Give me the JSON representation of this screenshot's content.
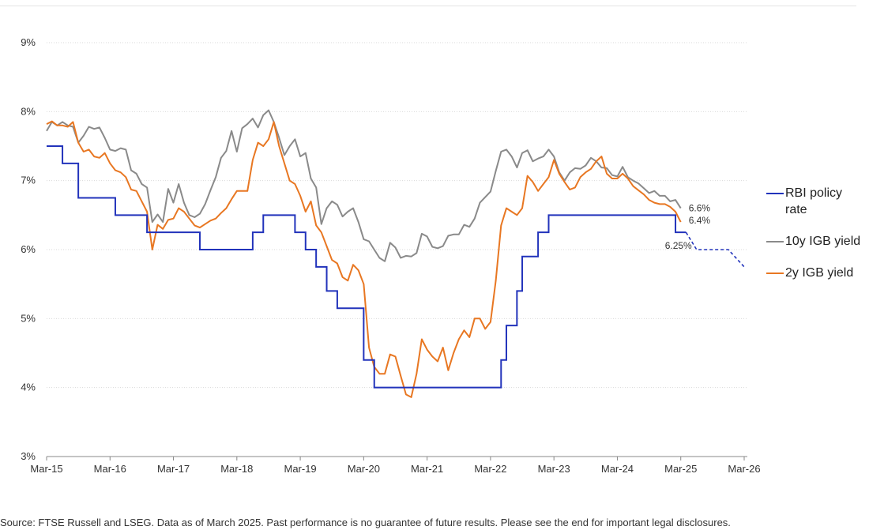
{
  "source_note": "Source: FTSE Russell and LSEG. Data as of March 2025. Past performance is no guarantee of future results. Please see the end for important legal disclosures.",
  "chart_data": {
    "type": "line",
    "title": "",
    "xlabel": "",
    "ylabel": "",
    "ylim": [
      3,
      9
    ],
    "xlim": [
      "2015-03",
      "2026-03"
    ],
    "grid": true,
    "legend_placement": "right",
    "y_ticks": [
      "3%",
      "4%",
      "5%",
      "6%",
      "7%",
      "8%",
      "9%"
    ],
    "x_ticks": [
      "Mar-15",
      "Mar-16",
      "Mar-17",
      "Mar-18",
      "Mar-19",
      "Mar-20",
      "Mar-21",
      "Mar-22",
      "Mar-23",
      "Mar-24",
      "Mar-25",
      "Mar-26"
    ],
    "series": [
      {
        "name": "RBI policy rate",
        "color": "#2233bb",
        "style": "step",
        "points": [
          [
            "2015-03",
            7.5
          ],
          [
            "2015-06",
            7.25
          ],
          [
            "2015-09",
            6.75
          ],
          [
            "2016-04",
            6.5
          ],
          [
            "2016-10",
            6.25
          ],
          [
            "2017-08",
            6.0
          ],
          [
            "2018-06",
            6.25
          ],
          [
            "2018-08",
            6.5
          ],
          [
            "2019-02",
            6.25
          ],
          [
            "2019-04",
            6.0
          ],
          [
            "2019-06",
            5.75
          ],
          [
            "2019-08",
            5.4
          ],
          [
            "2019-10",
            5.15
          ],
          [
            "2020-03",
            4.4
          ],
          [
            "2020-05",
            4.0
          ],
          [
            "2022-05",
            4.4
          ],
          [
            "2022-06",
            4.9
          ],
          [
            "2022-08",
            5.4
          ],
          [
            "2022-09",
            5.9
          ],
          [
            "2022-12",
            6.25
          ],
          [
            "2023-02",
            6.5
          ],
          [
            "2025-02",
            6.25
          ],
          [
            "2025-04",
            6.25
          ]
        ],
        "projection": {
          "style": "dashed",
          "points": [
            [
              "2025-04",
              6.25
            ],
            [
              "2025-06",
              6.0
            ],
            [
              "2025-12",
              6.0
            ],
            [
              "2026-03",
              5.75
            ]
          ]
        },
        "end_label": "6.25%"
      },
      {
        "name": "10y IGB yield",
        "color": "#8a8a8a",
        "style": "line",
        "x": [
          "2015-03",
          "2015-04",
          "2015-05",
          "2015-06",
          "2015-07",
          "2015-08",
          "2015-09",
          "2015-10",
          "2015-11",
          "2015-12",
          "2016-01",
          "2016-02",
          "2016-03",
          "2016-04",
          "2016-05",
          "2016-06",
          "2016-07",
          "2016-08",
          "2016-09",
          "2016-10",
          "2016-11",
          "2016-12",
          "2017-01",
          "2017-02",
          "2017-03",
          "2017-04",
          "2017-05",
          "2017-06",
          "2017-07",
          "2017-08",
          "2017-09",
          "2017-10",
          "2017-11",
          "2017-12",
          "2018-01",
          "2018-02",
          "2018-03",
          "2018-04",
          "2018-05",
          "2018-06",
          "2018-07",
          "2018-08",
          "2018-09",
          "2018-10",
          "2018-11",
          "2018-12",
          "2019-01",
          "2019-02",
          "2019-03",
          "2019-04",
          "2019-05",
          "2019-06",
          "2019-07",
          "2019-08",
          "2019-09",
          "2019-10",
          "2019-11",
          "2019-12",
          "2020-01",
          "2020-02",
          "2020-03",
          "2020-04",
          "2020-05",
          "2020-06",
          "2020-07",
          "2020-08",
          "2020-09",
          "2020-10",
          "2020-11",
          "2020-12",
          "2021-01",
          "2021-02",
          "2021-03",
          "2021-04",
          "2021-05",
          "2021-06",
          "2021-07",
          "2021-08",
          "2021-09",
          "2021-10",
          "2021-11",
          "2021-12",
          "2022-01",
          "2022-02",
          "2022-03",
          "2022-04",
          "2022-05",
          "2022-06",
          "2022-07",
          "2022-08",
          "2022-09",
          "2022-10",
          "2022-11",
          "2022-12",
          "2023-01",
          "2023-02",
          "2023-03",
          "2023-04",
          "2023-05",
          "2023-06",
          "2023-07",
          "2023-08",
          "2023-09",
          "2023-10",
          "2023-11",
          "2023-12",
          "2024-01",
          "2024-02",
          "2024-03",
          "2024-04",
          "2024-05",
          "2024-06",
          "2024-07",
          "2024-08",
          "2024-09",
          "2024-10",
          "2024-11",
          "2024-12",
          "2025-01",
          "2025-02",
          "2025-03"
        ],
        "values": [
          7.72,
          7.85,
          7.8,
          7.85,
          7.8,
          7.78,
          7.55,
          7.65,
          7.78,
          7.75,
          7.77,
          7.62,
          7.45,
          7.43,
          7.47,
          7.45,
          7.15,
          7.1,
          6.95,
          6.9,
          6.4,
          6.51,
          6.4,
          6.88,
          6.68,
          6.95,
          6.68,
          6.5,
          6.47,
          6.52,
          6.66,
          6.86,
          7.05,
          7.33,
          7.43,
          7.72,
          7.42,
          7.76,
          7.82,
          7.9,
          7.77,
          7.95,
          8.02,
          7.85,
          7.62,
          7.37,
          7.5,
          7.6,
          7.35,
          7.4,
          7.03,
          6.9,
          6.37,
          6.6,
          6.7,
          6.65,
          6.48,
          6.55,
          6.6,
          6.4,
          6.15,
          6.12,
          6.0,
          5.88,
          5.83,
          6.1,
          6.03,
          5.88,
          5.91,
          5.9,
          5.95,
          6.23,
          6.19,
          6.04,
          6.02,
          6.05,
          6.2,
          6.22,
          6.22,
          6.36,
          6.33,
          6.45,
          6.68,
          6.76,
          6.84,
          7.14,
          7.42,
          7.45,
          7.35,
          7.19,
          7.4,
          7.44,
          7.28,
          7.32,
          7.35,
          7.45,
          7.35,
          7.12,
          7.0,
          7.12,
          7.18,
          7.17,
          7.22,
          7.33,
          7.28,
          7.19,
          7.18,
          7.08,
          7.06,
          7.2,
          7.05,
          7.0,
          6.96,
          6.89,
          6.82,
          6.85,
          6.78,
          6.78,
          6.7,
          6.72,
          6.6
        ],
        "end_label": "6.6%"
      },
      {
        "name": "2y IGB yield",
        "color": "#e87722",
        "style": "line",
        "x": [
          "2015-03",
          "2015-04",
          "2015-05",
          "2015-06",
          "2015-07",
          "2015-08",
          "2015-09",
          "2015-10",
          "2015-11",
          "2015-12",
          "2016-01",
          "2016-02",
          "2016-03",
          "2016-04",
          "2016-05",
          "2016-06",
          "2016-07",
          "2016-08",
          "2016-09",
          "2016-10",
          "2016-11",
          "2016-12",
          "2017-01",
          "2017-02",
          "2017-03",
          "2017-04",
          "2017-05",
          "2017-06",
          "2017-07",
          "2017-08",
          "2017-09",
          "2017-10",
          "2017-11",
          "2017-12",
          "2018-01",
          "2018-02",
          "2018-03",
          "2018-04",
          "2018-05",
          "2018-06",
          "2018-07",
          "2018-08",
          "2018-09",
          "2018-10",
          "2018-11",
          "2018-12",
          "2019-01",
          "2019-02",
          "2019-03",
          "2019-04",
          "2019-05",
          "2019-06",
          "2019-07",
          "2019-08",
          "2019-09",
          "2019-10",
          "2019-11",
          "2019-12",
          "2020-01",
          "2020-02",
          "2020-03",
          "2020-04",
          "2020-05",
          "2020-06",
          "2020-07",
          "2020-08",
          "2020-09",
          "2020-10",
          "2020-11",
          "2020-12",
          "2021-01",
          "2021-02",
          "2021-03",
          "2021-04",
          "2021-05",
          "2021-06",
          "2021-07",
          "2021-08",
          "2021-09",
          "2021-10",
          "2021-11",
          "2021-12",
          "2022-01",
          "2022-02",
          "2022-03",
          "2022-04",
          "2022-05",
          "2022-06",
          "2022-07",
          "2022-08",
          "2022-09",
          "2022-10",
          "2022-11",
          "2022-12",
          "2023-01",
          "2023-02",
          "2023-03",
          "2023-04",
          "2023-05",
          "2023-06",
          "2023-07",
          "2023-08",
          "2023-09",
          "2023-10",
          "2023-11",
          "2023-12",
          "2024-01",
          "2024-02",
          "2024-03",
          "2024-04",
          "2024-05",
          "2024-06",
          "2024-07",
          "2024-08",
          "2024-09",
          "2024-10",
          "2024-11",
          "2024-12",
          "2025-01",
          "2025-02",
          "2025-03"
        ],
        "values": [
          7.82,
          7.86,
          7.8,
          7.8,
          7.78,
          7.85,
          7.55,
          7.42,
          7.45,
          7.35,
          7.33,
          7.4,
          7.25,
          7.15,
          7.12,
          7.05,
          6.87,
          6.85,
          6.7,
          6.55,
          6.0,
          6.36,
          6.3,
          6.43,
          6.45,
          6.6,
          6.55,
          6.45,
          6.35,
          6.32,
          6.37,
          6.42,
          6.45,
          6.53,
          6.6,
          6.73,
          6.85,
          6.85,
          6.85,
          7.3,
          7.55,
          7.5,
          7.6,
          7.85,
          7.5,
          7.25,
          7.0,
          6.95,
          6.78,
          6.55,
          6.7,
          6.35,
          6.25,
          6.05,
          5.85,
          5.8,
          5.6,
          5.55,
          5.78,
          5.7,
          5.5,
          4.58,
          4.3,
          4.2,
          4.2,
          4.48,
          4.45,
          4.17,
          3.9,
          3.86,
          4.2,
          4.7,
          4.55,
          4.45,
          4.38,
          4.58,
          4.25,
          4.5,
          4.7,
          4.83,
          4.73,
          5.0,
          5.0,
          4.85,
          4.95,
          5.55,
          6.35,
          6.6,
          6.55,
          6.5,
          6.6,
          7.07,
          6.98,
          6.85,
          6.95,
          7.05,
          7.3,
          7.1,
          6.98,
          6.87,
          6.9,
          7.05,
          7.12,
          7.17,
          7.28,
          7.35,
          7.1,
          7.03,
          7.03,
          7.1,
          7.03,
          6.92,
          6.86,
          6.8,
          6.72,
          6.68,
          6.66,
          6.66,
          6.62,
          6.55,
          6.4
        ],
        "end_label": "6.4%"
      }
    ]
  }
}
